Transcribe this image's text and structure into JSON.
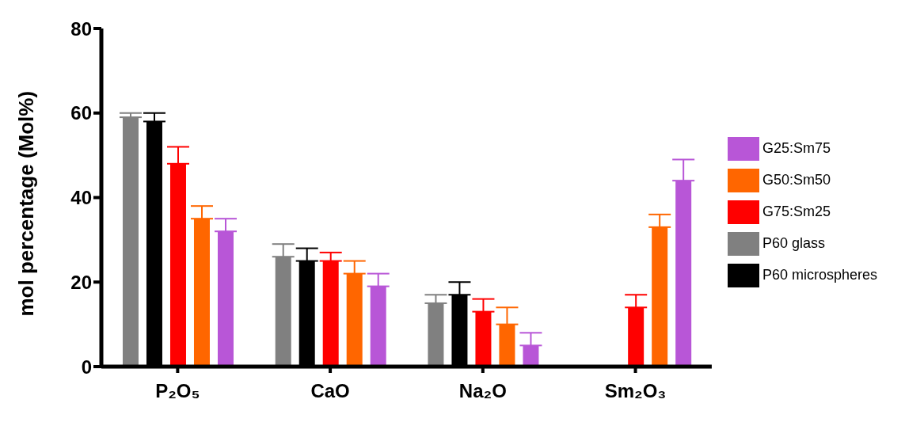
{
  "chart_data": {
    "type": "bar",
    "ylabel": "mol percentage (Mol%)",
    "categories": [
      "P₂O₅",
      "CaO",
      "Na₂O",
      "Sm₂O₃"
    ],
    "series": [
      {
        "name": "P60 glass",
        "color": "#808080",
        "values": [
          59,
          26,
          15,
          null
        ],
        "errors": [
          [
            59,
            60
          ],
          [
            26,
            29
          ],
          [
            15,
            17
          ],
          null
        ]
      },
      {
        "name": "P60 microspheres",
        "color": "#000000",
        "values": [
          58,
          25,
          17,
          null
        ],
        "errors": [
          [
            58,
            60
          ],
          [
            25,
            28
          ],
          [
            17,
            20
          ],
          null
        ]
      },
      {
        "name": "G75:Sm25",
        "color": "#ff0000",
        "values": [
          48,
          25,
          13,
          14
        ],
        "errors": [
          [
            48,
            52
          ],
          [
            25,
            27
          ],
          [
            13,
            16
          ],
          [
            14,
            17
          ]
        ]
      },
      {
        "name": "G50:Sm50",
        "color": "#ff6600",
        "values": [
          35,
          22,
          10,
          33
        ],
        "errors": [
          [
            35,
            38
          ],
          [
            22,
            25
          ],
          [
            10,
            14
          ],
          [
            33,
            36
          ]
        ]
      },
      {
        "name": "G25:Sm75",
        "color": "#b856d7",
        "values": [
          32,
          19,
          5,
          44
        ],
        "errors": [
          [
            32,
            35
          ],
          [
            19,
            22
          ],
          [
            5,
            8
          ],
          [
            44,
            49
          ]
        ]
      }
    ],
    "ylim": [
      0,
      80
    ],
    "yticks": [
      0,
      20,
      40,
      60,
      80
    ],
    "grid": false,
    "legend": "right"
  }
}
